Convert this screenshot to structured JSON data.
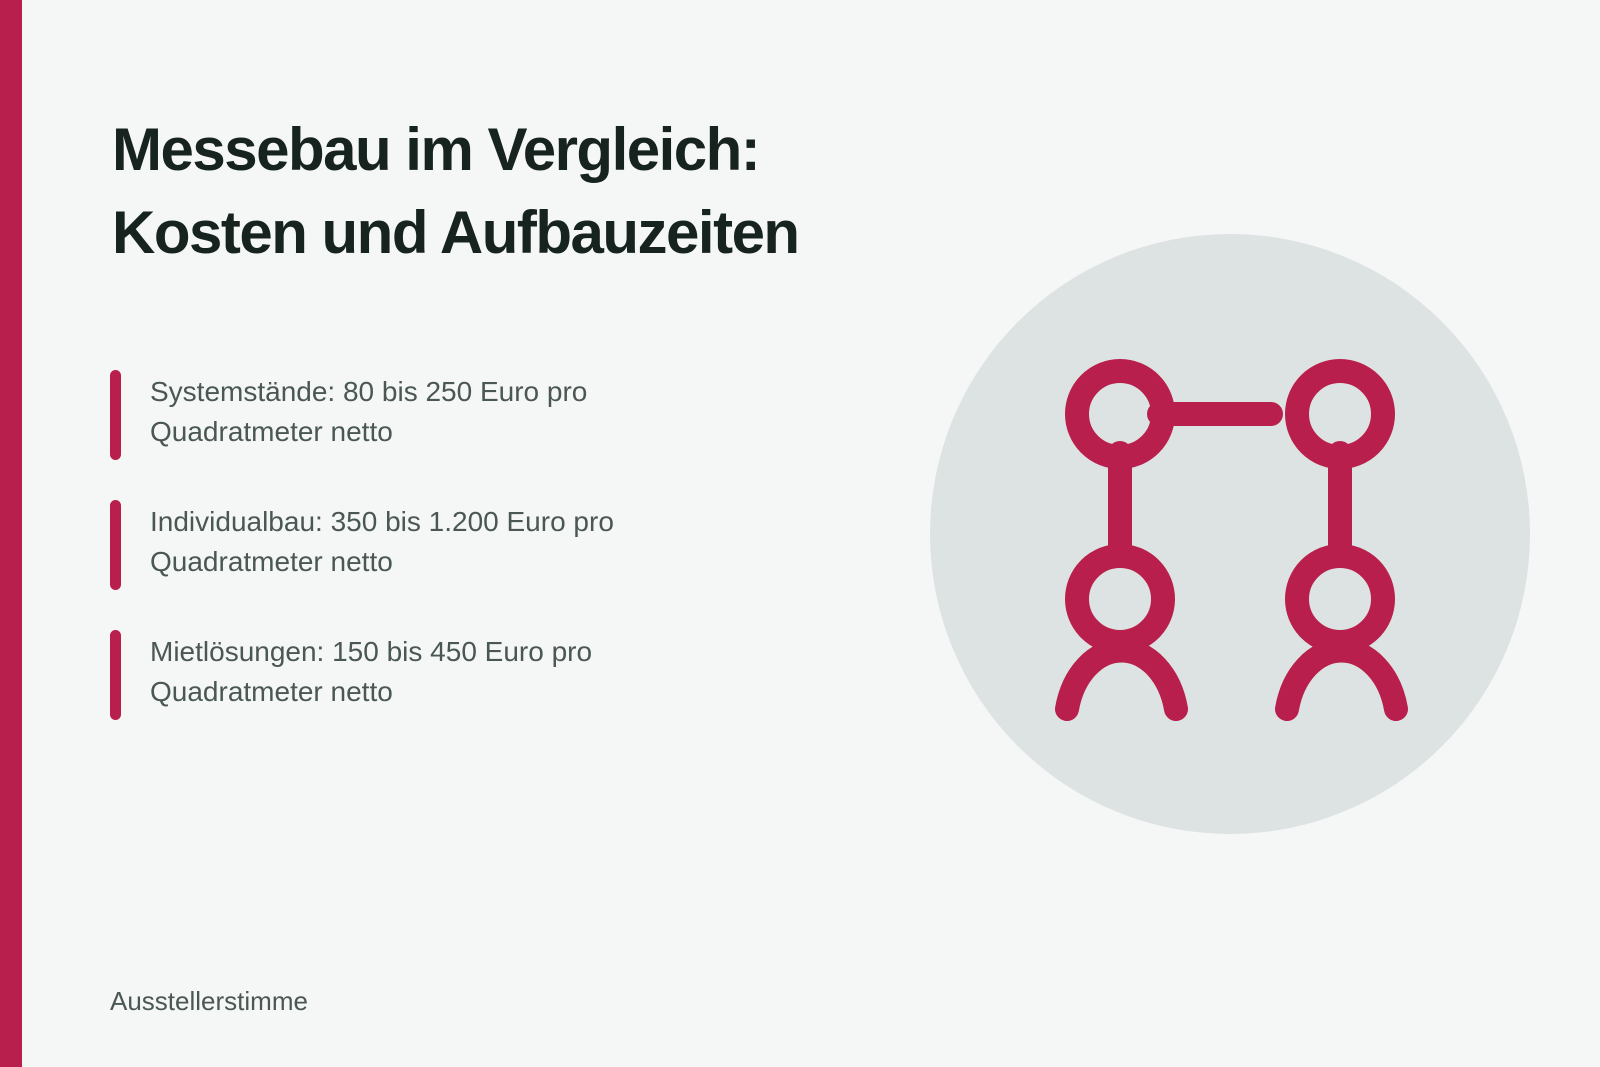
{
  "title": {
    "line1": "Messebau im Vergleich:",
    "line2": "Kosten und Aufbauzeiten"
  },
  "points": [
    {
      "line1": "Systemstände: 80 bis 250 Euro pro",
      "line2": "Quadratmeter netto"
    },
    {
      "line1": "Individualbau: 350 bis 1.200 Euro pro",
      "line2": "Quadratmeter netto"
    },
    {
      "line1": "Mietlösungen: 150 bis 450 Euro pro",
      "line2": "Quadratmeter netto"
    }
  ],
  "illustration": {
    "icon": "connected-people-network-icon"
  },
  "footer": {
    "brand": "Ausstellerstimme"
  },
  "colors": {
    "accent": "#b81f4c",
    "background": "#f5f7f7",
    "circle": "#dde3e2",
    "heading": "#17231f",
    "body_text": "#4a5753"
  }
}
